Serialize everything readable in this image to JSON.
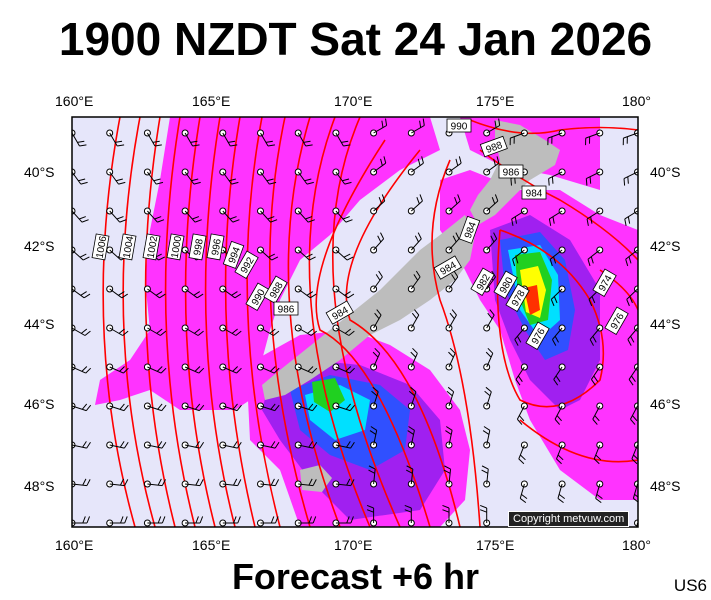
{
  "title": "1900 NZDT Sat 24 Jan 2026",
  "subtitle": "Forecast +6 hr",
  "product_code": "US6",
  "copyright": "Copyright metvuw.com",
  "longitude_labels": [
    "160°E",
    "165°E",
    "170°E",
    "175°E",
    "180°"
  ],
  "latitude_labels": [
    "40°S",
    "42°S",
    "44°S",
    "46°S",
    "48°S"
  ],
  "isobar_labels": [
    "990",
    "988",
    "986",
    "984",
    "984",
    "984",
    "982",
    "980",
    "978",
    "976",
    "974",
    "976",
    "1006",
    "1004",
    "1002",
    "1000",
    "998",
    "996",
    "994",
    "992",
    "990",
    "988",
    "986",
    "984"
  ],
  "colors": {
    "ocean": "#e6e6fa",
    "land": "#bdbdbd",
    "rain_light": "#ff33ff",
    "rain_mod": "#a020f0",
    "rain_blue": "#3050ff",
    "rain_cyan": "#00e0ff",
    "rain_green": "#20d020",
    "rain_yellow": "#ffff00",
    "rain_red": "#ff3000",
    "isobar": "#ff0000",
    "wind": "#000000"
  },
  "icons": [
    "wind-barb-icon",
    "isobar-line",
    "rain-contour"
  ]
}
